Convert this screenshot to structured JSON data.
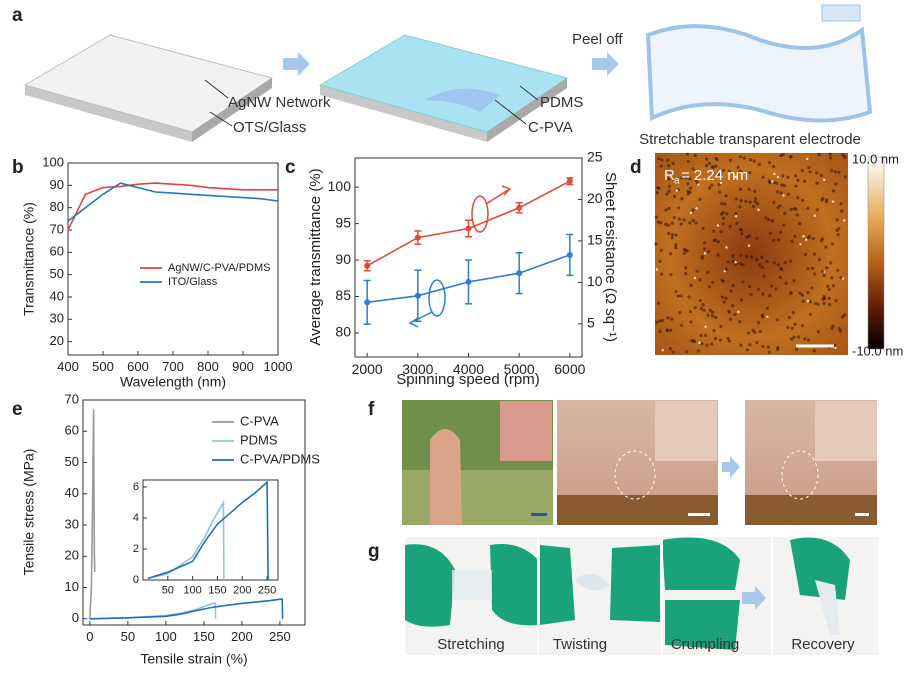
{
  "figure": {
    "panel_labels": [
      "a",
      "b",
      "c",
      "d",
      "e",
      "f",
      "g"
    ],
    "a": {
      "labels": [
        "AgNW Network",
        "OTS/Glass",
        "Peel off",
        "PDMS",
        "C-PVA",
        "Stretchable transparent electrode"
      ]
    },
    "d": {
      "ra_symbol": "R",
      "ra_subscript": "a",
      "ra_value": "= 2.24 nm",
      "scale_max": "10.0 nm",
      "scale_min": "-10.0 nm"
    },
    "g": {
      "captions": [
        "Stretching",
        "Twisting",
        "Crumpling",
        "Recovery"
      ]
    }
  },
  "chart_data": [
    {
      "type": "line",
      "xlabel": "Wavelength (nm)",
      "ylabel": "Transmittance (%)",
      "x": [
        400,
        450,
        500,
        550,
        600,
        650,
        700,
        750,
        800,
        850,
        900,
        950,
        1000
      ],
      "series": [
        {
          "name": "AgNW/C-PVA/PDMS",
          "color": "#e8413c",
          "values": [
            70,
            86,
            89,
            89.5,
            90.5,
            91,
            90.5,
            90,
            89,
            88.5,
            88,
            88,
            88
          ]
        },
        {
          "name": "ITO/Glass",
          "color": "#1c78c4",
          "values": [
            74,
            80,
            86,
            91,
            89,
            87,
            86.5,
            86,
            85.5,
            85,
            84.5,
            84,
            83
          ]
        }
      ],
      "xlim": [
        400,
        1000
      ],
      "xticks": [
        400,
        500,
        600,
        700,
        800,
        900,
        1000
      ],
      "ylim": [
        14,
        100
      ],
      "yticks": [
        20,
        30,
        40,
        50,
        60,
        70,
        80,
        90,
        100
      ],
      "legend": "lower right"
    },
    {
      "type": "line",
      "xlabel": "Spinning speed (rpm)",
      "ylabel": "Average transmittance (%)",
      "y2label": "Sheet resistance (Ω sq⁻¹)",
      "x": [
        2000,
        3000,
        4000,
        5000,
        6000
      ],
      "series": [
        {
          "color": "#e04a3a",
          "axis": "y2",
          "values": [
            12.0,
            15.4,
            16.5,
            19.0,
            22.2
          ],
          "errors": [
            0.6,
            0.8,
            1.0,
            0.6,
            0.4
          ]
        },
        {
          "color": "#2a7fd0",
          "values": [
            84.2,
            85.1,
            87.0,
            88.2,
            90.7
          ],
          "errors": [
            3.0,
            3.5,
            3.0,
            2.8,
            2.8
          ]
        }
      ],
      "xlim": [
        1760,
        6240
      ],
      "xticks": [
        2000,
        3000,
        4000,
        5000,
        6000
      ],
      "ylim": [
        76.7,
        104
      ],
      "yticks": [
        80,
        85,
        90,
        95,
        100
      ],
      "y2lim": [
        1,
        25
      ],
      "y2ticks": [
        5,
        10,
        15,
        20,
        25
      ]
    },
    {
      "type": "line",
      "xlabel": "Tensile strain (%)",
      "ylabel": "Tensile stress (MPa)",
      "series": [
        {
          "name": "C-PVA",
          "color": "#9a9a9a",
          "x": [
            0,
            2,
            3,
            4,
            4.5,
            5,
            5.5,
            6,
            6.5
          ],
          "values": [
            0,
            10,
            25,
            45,
            60,
            67,
            40,
            20,
            15
          ]
        },
        {
          "name": "PDMS",
          "color": "#8fc3e6",
          "x": [
            0,
            50,
            100,
            120,
            140,
            155,
            163,
            165,
            165.5
          ],
          "values": [
            0,
            0.3,
            1,
            1.8,
            3,
            4.3,
            5,
            5,
            0
          ]
        },
        {
          "name": "C-PVA/PDMS",
          "color": "#1f6fc0",
          "x": [
            0,
            50,
            100,
            120,
            140,
            160,
            180,
            200,
            220,
            240,
            252,
            253,
            253.5
          ],
          "values": [
            0,
            0.3,
            0.8,
            1.5,
            2.6,
            3.6,
            4.3,
            4.9,
            5.4,
            5.9,
            6.3,
            6.3,
            0
          ]
        }
      ],
      "xlim": [
        -9,
        283
      ],
      "xticks": [
        0,
        50,
        100,
        150,
        200,
        250
      ],
      "ylim": [
        -2,
        70
      ],
      "yticks": [
        0,
        10,
        20,
        30,
        40,
        50,
        60,
        70
      ],
      "legend": "upper right"
    },
    {
      "type": "line",
      "series": [
        {
          "color": "#8fc3e6",
          "x": [
            10,
            50,
            100,
            125,
            140,
            155,
            162,
            163
          ],
          "values": [
            0.1,
            0.4,
            1.5,
            2.8,
            3.8,
            4.6,
            5,
            0
          ]
        },
        {
          "color": "#1f6fc0",
          "x": [
            10,
            50,
            100,
            125,
            150,
            175,
            200,
            225,
            250,
            252
          ],
          "values": [
            0.1,
            0.5,
            1.2,
            2.5,
            3.6,
            4.3,
            5,
            5.6,
            6.3,
            0
          ]
        }
      ],
      "xlim": [
        0,
        272
      ],
      "xticks": [
        50,
        100,
        150,
        200,
        250
      ],
      "ylim": [
        0,
        6.45
      ],
      "yticks": [
        0,
        2,
        4,
        6
      ]
    }
  ]
}
